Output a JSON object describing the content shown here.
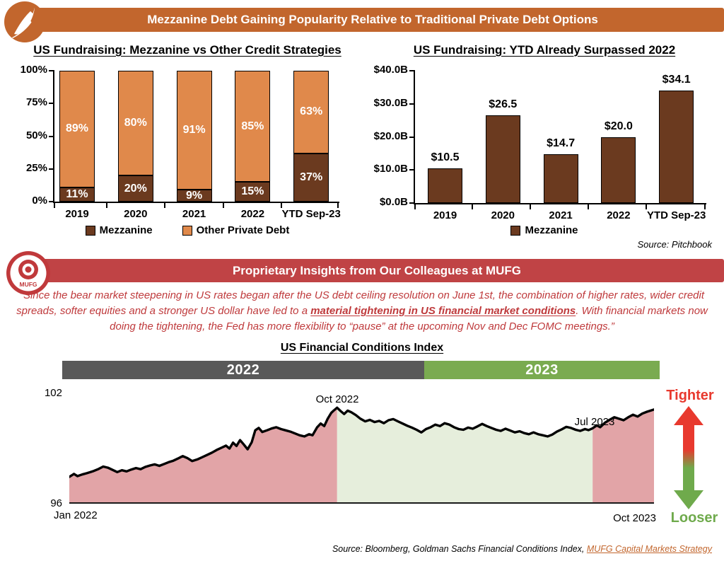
{
  "header": {
    "title": "Mezzanine Debt Gaining Popularity Relative to Traditional Private Debt Options",
    "accent_color": "#C2662D"
  },
  "icons": {
    "top_logo": "feather-icon",
    "insights_logo": "mufg-target-icon",
    "direction_arrow": "up-down-arrow-icon"
  },
  "insights": {
    "banner_title": "Proprietary Insights from Our Colleagues at MUFG",
    "banner_color": "#C04345",
    "logo_text": "MUFG",
    "quote_before": "“Since the bear market steepening in US rates began after the US debt ceiling resolution on June 1st, the combination of higher rates, wider credit spreads, softer equities and a stronger US dollar have led to a ",
    "quote_bold": "material tightening in US financial market conditions",
    "quote_after": ".  With financial markets now doing the tightening, the Fed has more flexibility to “pause” at the upcoming Nov and Dec FOMC meetings.”"
  },
  "fci": {
    "source_plain": "Source: Bloomberg, Goldman Sachs Financial Conditions Index, ",
    "source_link": "MUFG Capital Markets Strategy",
    "link_color": "#C2662D"
  },
  "chart_data": [
    {
      "type": "bar",
      "stacked": true,
      "title": "US Fundraising: Mezzanine vs Other Credit Strategies",
      "categories": [
        "2019",
        "2020",
        "2021",
        "2022",
        "YTD Sep-23"
      ],
      "series": [
        {
          "name": "Mezzanine",
          "color": "#6B3A1F",
          "values": [
            11,
            20,
            9,
            15,
            37
          ]
        },
        {
          "name": "Other Private Debt",
          "color": "#E0894B",
          "values": [
            89,
            80,
            91,
            85,
            63
          ]
        }
      ],
      "value_suffix": "%",
      "ytick_labels": [
        "0%",
        "25%",
        "50%",
        "75%",
        "100%"
      ],
      "ylim": [
        0,
        100
      ],
      "legend_position": "bottom",
      "grid": false
    },
    {
      "type": "bar",
      "title": "US Fundraising: YTD Already Surpassed 2022",
      "categories": [
        "2019",
        "2020",
        "2021",
        "2022",
        "YTD Sep-23"
      ],
      "series": [
        {
          "name": "Mezzanine",
          "color": "#6B3A1F",
          "values": [
            10.5,
            26.5,
            14.7,
            20.0,
            34.1
          ]
        }
      ],
      "data_labels": [
        "$10.5",
        "$26.5",
        "$14.7",
        "$20.0",
        "$34.1"
      ],
      "ytick_labels": [
        "$0.0B",
        "$10.0B",
        "$20.0B",
        "$30.0B",
        "$40.0B"
      ],
      "ylim": [
        0,
        40
      ],
      "legend_position": "bottom",
      "source": "Source: Pitchbook",
      "grid": false
    },
    {
      "type": "line",
      "title": "US Financial Conditions Index",
      "ylim": [
        96,
        102
      ],
      "ytick_labels": [
        "96",
        "102"
      ],
      "x_range_labels": [
        "Jan 2022",
        "Oct 2023"
      ],
      "annotations": [
        {
          "label": "Oct 2022",
          "x": 0.458
        },
        {
          "label": "Jul 2023",
          "x": 0.895
        }
      ],
      "period_bands": [
        {
          "label": "2022",
          "color": "#595959",
          "from": 0,
          "to": 0.606
        },
        {
          "label": "2023",
          "color": "#7AAB50",
          "from": 0.606,
          "to": 1
        }
      ],
      "regions": [
        {
          "name": "tightening-2022",
          "from": 0,
          "to": 0.458,
          "fill": "#E2A4A7"
        },
        {
          "name": "loosening-2023",
          "from": 0.458,
          "to": 0.895,
          "fill": "#E6EEDC"
        },
        {
          "name": "tightening-again",
          "from": 0.895,
          "to": 1,
          "fill": "#E2A4A7"
        }
      ],
      "direction_legend": {
        "up": "Tighter",
        "up_color": "#E8392E",
        "down": "Looser",
        "down_color": "#6FAA4C"
      },
      "line_color": "#000000",
      "points": [
        [
          0.0,
          97.42
        ],
        [
          0.008,
          97.58
        ],
        [
          0.014,
          97.46
        ],
        [
          0.022,
          97.55
        ],
        [
          0.03,
          97.62
        ],
        [
          0.04,
          97.72
        ],
        [
          0.05,
          97.85
        ],
        [
          0.058,
          97.98
        ],
        [
          0.066,
          97.92
        ],
        [
          0.074,
          97.8
        ],
        [
          0.082,
          97.68
        ],
        [
          0.09,
          97.78
        ],
        [
          0.098,
          97.72
        ],
        [
          0.106,
          97.82
        ],
        [
          0.114,
          97.9
        ],
        [
          0.122,
          97.84
        ],
        [
          0.13,
          97.96
        ],
        [
          0.138,
          98.04
        ],
        [
          0.146,
          98.1
        ],
        [
          0.154,
          98.02
        ],
        [
          0.162,
          98.12
        ],
        [
          0.17,
          98.22
        ],
        [
          0.178,
          98.3
        ],
        [
          0.186,
          98.42
        ],
        [
          0.194,
          98.55
        ],
        [
          0.202,
          98.44
        ],
        [
          0.21,
          98.28
        ],
        [
          0.22,
          98.38
        ],
        [
          0.228,
          98.5
        ],
        [
          0.236,
          98.62
        ],
        [
          0.244,
          98.74
        ],
        [
          0.252,
          98.88
        ],
        [
          0.26,
          99.0
        ],
        [
          0.268,
          99.12
        ],
        [
          0.274,
          98.96
        ],
        [
          0.28,
          99.28
        ],
        [
          0.286,
          99.1
        ],
        [
          0.292,
          99.42
        ],
        [
          0.298,
          99.2
        ],
        [
          0.305,
          98.92
        ],
        [
          0.312,
          99.3
        ],
        [
          0.318,
          99.95
        ],
        [
          0.324,
          100.08
        ],
        [
          0.33,
          99.86
        ],
        [
          0.338,
          99.95
        ],
        [
          0.346,
          100.05
        ],
        [
          0.354,
          100.12
        ],
        [
          0.362,
          100.02
        ],
        [
          0.37,
          99.95
        ],
        [
          0.378,
          99.88
        ],
        [
          0.386,
          99.78
        ],
        [
          0.394,
          99.68
        ],
        [
          0.402,
          99.62
        ],
        [
          0.41,
          99.74
        ],
        [
          0.416,
          99.68
        ],
        [
          0.424,
          100.12
        ],
        [
          0.43,
          100.32
        ],
        [
          0.436,
          100.18
        ],
        [
          0.442,
          100.58
        ],
        [
          0.448,
          100.9
        ],
        [
          0.452,
          101.02
        ],
        [
          0.458,
          101.18
        ],
        [
          0.464,
          101.0
        ],
        [
          0.47,
          100.84
        ],
        [
          0.476,
          101.02
        ],
        [
          0.482,
          100.94
        ],
        [
          0.49,
          100.78
        ],
        [
          0.498,
          100.58
        ],
        [
          0.506,
          100.44
        ],
        [
          0.514,
          100.52
        ],
        [
          0.522,
          100.4
        ],
        [
          0.53,
          100.46
        ],
        [
          0.538,
          100.34
        ],
        [
          0.546,
          100.5
        ],
        [
          0.554,
          100.56
        ],
        [
          0.562,
          100.44
        ],
        [
          0.57,
          100.32
        ],
        [
          0.578,
          100.2
        ],
        [
          0.586,
          100.1
        ],
        [
          0.594,
          99.98
        ],
        [
          0.602,
          99.84
        ],
        [
          0.61,
          100.02
        ],
        [
          0.618,
          100.12
        ],
        [
          0.626,
          100.26
        ],
        [
          0.634,
          100.18
        ],
        [
          0.642,
          100.34
        ],
        [
          0.65,
          100.26
        ],
        [
          0.658,
          100.12
        ],
        [
          0.666,
          100.02
        ],
        [
          0.674,
          99.98
        ],
        [
          0.682,
          100.1
        ],
        [
          0.69,
          100.04
        ],
        [
          0.698,
          100.16
        ],
        [
          0.706,
          100.3
        ],
        [
          0.714,
          100.18
        ],
        [
          0.722,
          100.08
        ],
        [
          0.73,
          99.98
        ],
        [
          0.738,
          99.92
        ],
        [
          0.746,
          100.04
        ],
        [
          0.754,
          99.94
        ],
        [
          0.762,
          99.84
        ],
        [
          0.77,
          99.9
        ],
        [
          0.778,
          99.8
        ],
        [
          0.786,
          99.74
        ],
        [
          0.794,
          99.84
        ],
        [
          0.802,
          99.74
        ],
        [
          0.81,
          99.68
        ],
        [
          0.818,
          99.62
        ],
        [
          0.826,
          99.72
        ],
        [
          0.834,
          99.88
        ],
        [
          0.842,
          100.0
        ],
        [
          0.85,
          100.14
        ],
        [
          0.858,
          100.08
        ],
        [
          0.866,
          99.98
        ],
        [
          0.874,
          99.92
        ],
        [
          0.882,
          100.02
        ],
        [
          0.888,
          99.96
        ],
        [
          0.895,
          100.06
        ],
        [
          0.902,
          100.22
        ],
        [
          0.908,
          100.12
        ],
        [
          0.916,
          100.36
        ],
        [
          0.924,
          100.52
        ],
        [
          0.932,
          100.66
        ],
        [
          0.94,
          100.58
        ],
        [
          0.948,
          100.5
        ],
        [
          0.956,
          100.66
        ],
        [
          0.964,
          100.8
        ],
        [
          0.972,
          100.7
        ],
        [
          0.98,
          100.86
        ],
        [
          0.988,
          100.96
        ],
        [
          1.0,
          101.08
        ]
      ]
    }
  ]
}
